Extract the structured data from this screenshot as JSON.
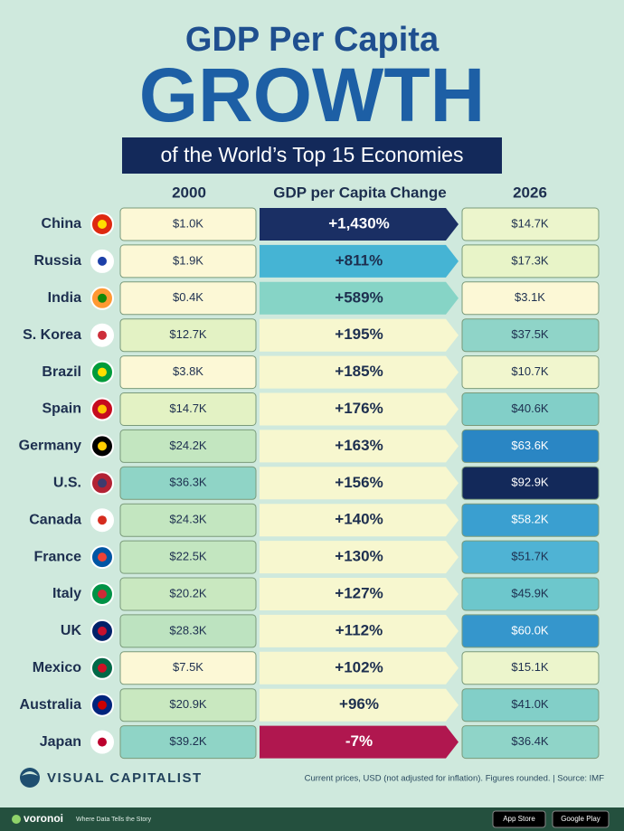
{
  "header": {
    "title": "GDP Per Capita",
    "headline": "GROWTH",
    "subtitle": "of the World’s Top 15 Economies"
  },
  "table": {
    "columns": [
      "2000",
      "GDP per Capita Change",
      "2026"
    ],
    "rows": [
      [
        "China",
        "$1.0K",
        "+1,430%",
        "$14.7K"
      ],
      [
        "Russia",
        "$1.9K",
        "+811%",
        "$17.3K"
      ],
      [
        "India",
        "$0.4K",
        "+589%",
        "$3.1K"
      ],
      [
        "S. Korea",
        "$12.7K",
        "+195%",
        "$37.5K"
      ],
      [
        "Brazil",
        "$3.8K",
        "+185%",
        "$10.7K"
      ],
      [
        "Spain",
        "$14.7K",
        "+176%",
        "$40.6K"
      ],
      [
        "Germany",
        "$24.2K",
        "+163%",
        "$63.6K"
      ],
      [
        "U.S.",
        "$36.3K",
        "+156%",
        "$92.9K"
      ],
      [
        "Canada",
        "$24.3K",
        "+140%",
        "$58.2K"
      ],
      [
        "France",
        "$22.5K",
        "+130%",
        "$51.7K"
      ],
      [
        "Italy",
        "$20.2K",
        "+127%",
        "$45.9K"
      ],
      [
        "UK",
        "$28.3K",
        "+112%",
        "$60.0K"
      ],
      [
        "Mexico",
        "$7.5K",
        "+102%",
        "$15.1K"
      ],
      [
        "Australia",
        "$20.9K",
        "+96%",
        "$41.0K"
      ],
      [
        "Japan",
        "$39.2K",
        "-7%",
        "$36.4K"
      ]
    ]
  },
  "footer": {
    "brand": "VISUAL CAPITALIST",
    "note": "Current prices, USD (not adjusted for inflation). Figures rounded. | Source: IMF",
    "voronoi": "voronoi",
    "tagline": "Where Data Tells the Story",
    "app_store": "App Store",
    "google_play": "Google Play"
  }
}
